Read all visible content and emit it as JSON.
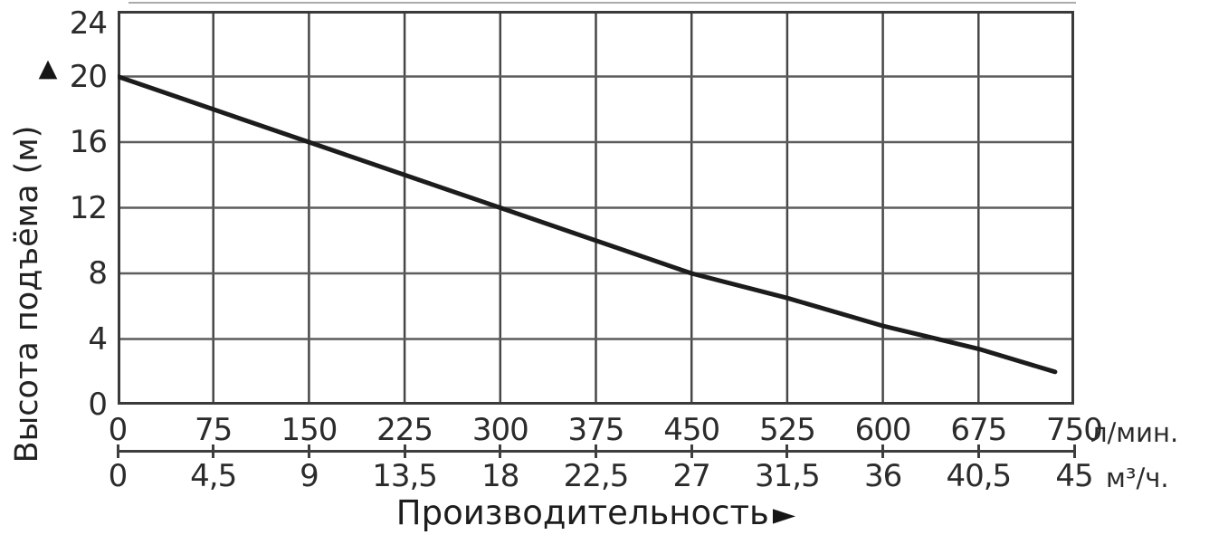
{
  "page": {
    "background": "#ffffff"
  },
  "chart_data": {
    "type": "line",
    "title": "",
    "description": "Pump performance curve: head (m) versus flow rate",
    "grid": true,
    "legend": false,
    "y_axis": {
      "label": "Высота подъёма (м)",
      "arrow": "▲",
      "ticks": [
        "24",
        "20",
        "16",
        "12",
        "8",
        "4",
        "0"
      ],
      "range": [
        0,
        24
      ],
      "gridline_step": 4
    },
    "x_axis": {
      "label": "Производительность",
      "arrow": "►",
      "scale_lmin": {
        "unit": "л/мин.",
        "ticks": [
          "0",
          "75",
          "150",
          "225",
          "300",
          "375",
          "450",
          "525",
          "600",
          "675",
          "750"
        ],
        "range": [
          0,
          750
        ]
      },
      "scale_m3h": {
        "unit": "м³/ч.",
        "ticks": [
          "0",
          "4,5",
          "9",
          "13,5",
          "18",
          "22,5",
          "27",
          "31,5",
          "36",
          "40,5",
          "45"
        ],
        "range": [
          0,
          45
        ]
      }
    },
    "series": [
      {
        "name": "head-vs-flow",
        "x_lmin": [
          0,
          75,
          150,
          225,
          300,
          375,
          450,
          525,
          600,
          675,
          735
        ],
        "y_m": [
          20,
          18,
          16,
          14,
          12,
          10,
          8,
          6.5,
          4.8,
          3.4,
          2
        ]
      }
    ],
    "colors": {
      "curve": "#1c1c1c",
      "grid_vertical": "#474747",
      "grid_horizontal": "#5c5c5c",
      "border": "#3a3a3a",
      "text": "#2b2b2b"
    }
  }
}
